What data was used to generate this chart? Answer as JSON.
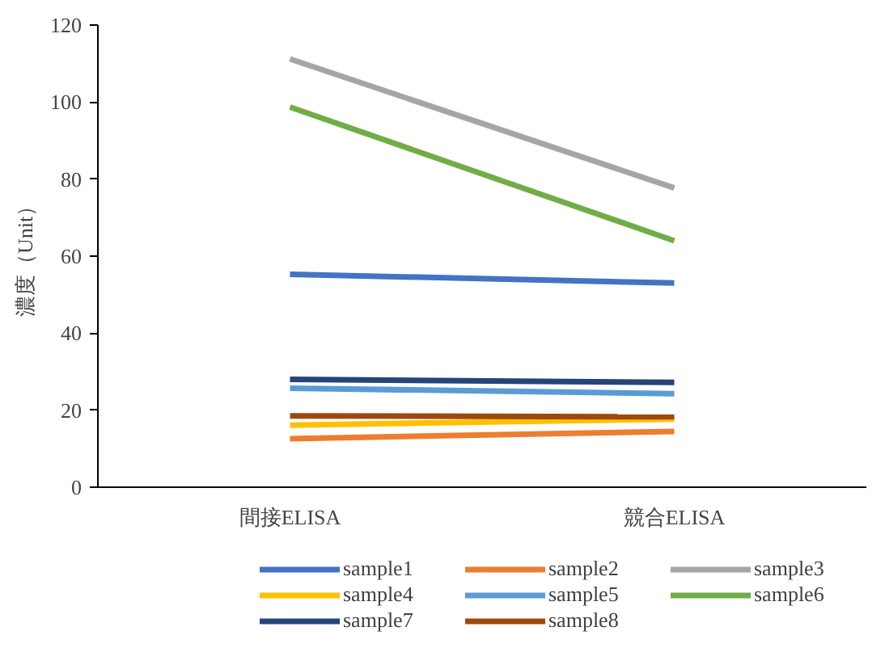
{
  "chart_data": {
    "type": "line",
    "ylabel": "濃度（Unit）",
    "categories": [
      "間接ELISA",
      "競合ELISA"
    ],
    "series": [
      {
        "name": "sample1",
        "color": "#4472c4",
        "values": [
          55.3,
          53
        ]
      },
      {
        "name": "sample2",
        "color": "#ed7d31",
        "values": [
          12.6,
          14.5
        ]
      },
      {
        "name": "sample3",
        "color": "#a5a5a5",
        "values": [
          111.2,
          77.7
        ]
      },
      {
        "name": "sample4",
        "color": "#ffc000",
        "values": [
          16.1,
          17.7
        ]
      },
      {
        "name": "sample5",
        "color": "#5b9bd5",
        "values": [
          25.7,
          24.3
        ]
      },
      {
        "name": "sample6",
        "color": "#70ad47",
        "values": [
          98.7,
          64
        ]
      },
      {
        "name": "sample7",
        "color": "#264478",
        "values": [
          28,
          27.2
        ]
      },
      {
        "name": "sample8",
        "color": "#9e480e",
        "values": [
          18.5,
          18.3
        ]
      }
    ],
    "ylim": [
      0,
      120
    ],
    "yticks": [
      0,
      20,
      40,
      60,
      80,
      100,
      120
    ],
    "grid": false,
    "legend": "bottom",
    "marker": "none",
    "line_style": "solid"
  }
}
